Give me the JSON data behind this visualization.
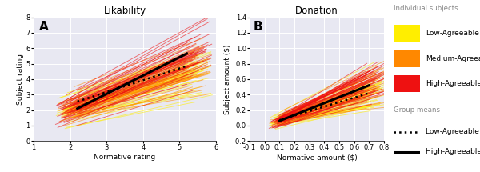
{
  "plot_A": {
    "title": "Likability",
    "xlabel": "Normative rating",
    "ylabel": "Subject rating",
    "xlim": [
      1,
      6
    ],
    "ylim": [
      0,
      8
    ],
    "xticks": [
      1,
      2,
      3,
      4,
      5,
      6
    ],
    "yticks": [
      0,
      1,
      2,
      3,
      4,
      5,
      6,
      7,
      8
    ],
    "label": "A",
    "high_line_x": [
      2.2,
      5.2
    ],
    "high_line_y": [
      2.1,
      5.65
    ],
    "low_line_x": [
      2.2,
      5.2
    ],
    "low_line_y": [
      2.55,
      4.85
    ],
    "x_start": 1.9,
    "x_end": 5.5
  },
  "plot_B": {
    "title": "Donation",
    "xlabel": "Normative amount ($)",
    "ylabel": "Subject amount ($)",
    "xlim": [
      -0.1,
      0.8
    ],
    "ylim": [
      -0.2,
      1.4
    ],
    "xticks": [
      -0.1,
      0.0,
      0.1,
      0.2,
      0.3,
      0.4,
      0.5,
      0.6,
      0.7,
      0.8
    ],
    "yticks": [
      -0.2,
      0.0,
      0.2,
      0.4,
      0.6,
      0.8,
      1.0,
      1.2,
      1.4
    ],
    "label": "B",
    "high_line_x": [
      0.1,
      0.7
    ],
    "high_line_y": [
      0.06,
      0.52
    ],
    "low_line_x": [
      0.1,
      0.7
    ],
    "low_line_y": [
      0.07,
      0.42
    ],
    "x_start": 0.08,
    "x_end": 0.73
  },
  "colors": {
    "low": "#FFEE00",
    "medium": "#FF8800",
    "high": "#EE1111",
    "background": "#E8E8F2"
  },
  "legend": {
    "individual_title": "Individual subjects",
    "group_title": "Group means",
    "low_label": "Low-Agreeable",
    "medium_label": "Medium-Agreeable",
    "high_label": "High-Agreeable",
    "low_mean_label": "Low-Agreeable mean",
    "high_mean_label": "High-Agreeable mean"
  },
  "n_lines": 45,
  "seed": 12
}
